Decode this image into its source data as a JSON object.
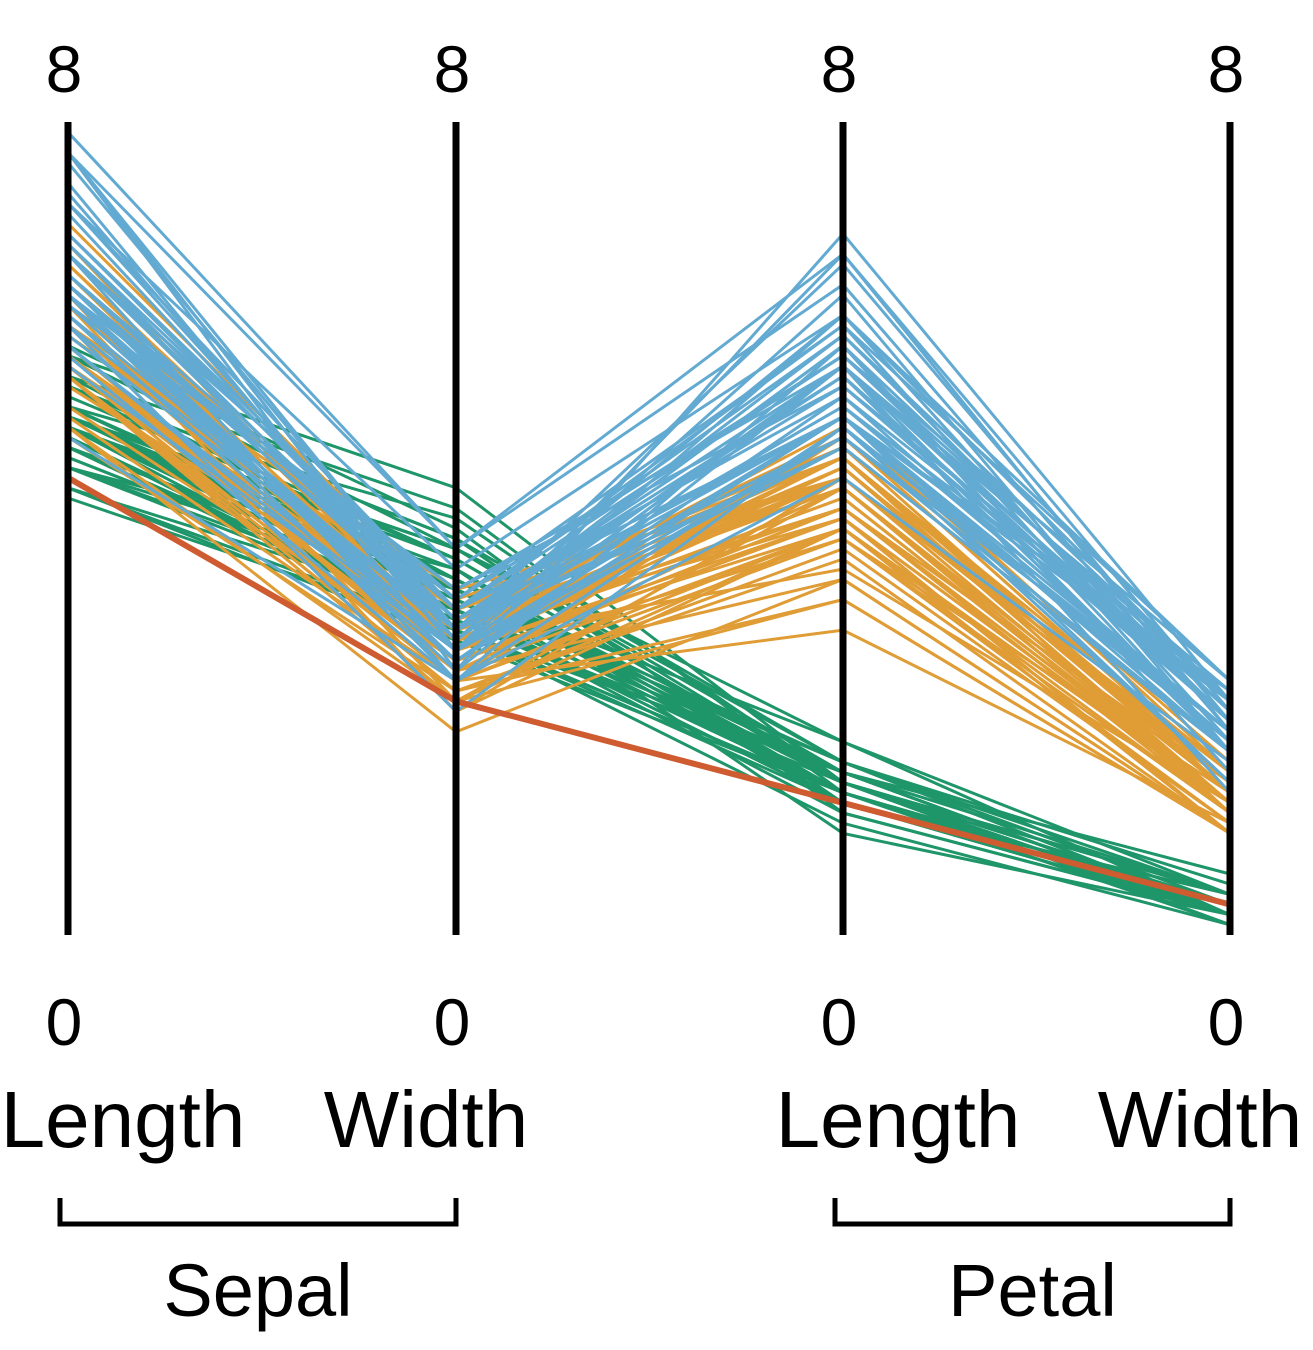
{
  "chart_data": {
    "type": "parallel_coordinates",
    "axes": [
      {
        "label": "Length",
        "min": 0,
        "max": 8,
        "group": "Sepal"
      },
      {
        "label": "Width",
        "min": 0,
        "max": 8,
        "group": "Sepal"
      },
      {
        "label": "Length",
        "min": 0,
        "max": 8,
        "group": "Petal"
      },
      {
        "label": "Width",
        "min": 0,
        "max": 8,
        "group": "Petal"
      }
    ],
    "groups": [
      {
        "label": "Sepal",
        "axes": [
          0,
          1
        ]
      },
      {
        "label": "Petal",
        "axes": [
          2,
          3
        ]
      }
    ],
    "colors": {
      "green": "#1f9669",
      "orange": "#e09c35",
      "blue": "#63aad2",
      "highlight": "#cf5b30"
    },
    "series": [
      {
        "color_key": "green",
        "values": [
          [
            5.1,
            3.5,
            1.4,
            0.2
          ],
          [
            4.9,
            3.0,
            1.4,
            0.2
          ],
          [
            4.7,
            3.2,
            1.3,
            0.2
          ],
          [
            4.6,
            3.1,
            1.5,
            0.2
          ],
          [
            5.0,
            3.6,
            1.4,
            0.2
          ],
          [
            5.4,
            3.9,
            1.7,
            0.4
          ],
          [
            4.6,
            3.4,
            1.4,
            0.3
          ],
          [
            5.0,
            3.4,
            1.5,
            0.2
          ],
          [
            4.4,
            2.9,
            1.4,
            0.2
          ],
          [
            4.9,
            3.1,
            1.5,
            0.1
          ],
          [
            5.4,
            3.7,
            1.5,
            0.2
          ],
          [
            4.8,
            3.4,
            1.6,
            0.2
          ],
          [
            4.8,
            3.0,
            1.4,
            0.1
          ],
          [
            4.3,
            3.0,
            1.1,
            0.1
          ],
          [
            5.8,
            4.0,
            1.2,
            0.2
          ],
          [
            5.7,
            4.4,
            1.5,
            0.4
          ],
          [
            5.4,
            3.9,
            1.3,
            0.4
          ],
          [
            5.1,
            3.5,
            1.4,
            0.3
          ],
          [
            5.7,
            3.8,
            1.7,
            0.3
          ],
          [
            5.1,
            3.8,
            1.5,
            0.3
          ],
          [
            5.4,
            3.4,
            1.7,
            0.2
          ],
          [
            5.1,
            3.7,
            1.5,
            0.4
          ],
          [
            4.6,
            3.6,
            1.0,
            0.2
          ],
          [
            5.1,
            3.3,
            1.7,
            0.5
          ],
          [
            4.8,
            3.4,
            1.9,
            0.2
          ],
          [
            5.0,
            3.0,
            1.6,
            0.2
          ],
          [
            5.0,
            3.4,
            1.6,
            0.4
          ],
          [
            5.2,
            3.5,
            1.5,
            0.2
          ],
          [
            5.2,
            3.4,
            1.4,
            0.2
          ],
          [
            4.7,
            3.2,
            1.6,
            0.2
          ],
          [
            4.8,
            3.1,
            1.6,
            0.2
          ],
          [
            5.4,
            3.4,
            1.5,
            0.4
          ],
          [
            5.2,
            4.1,
            1.5,
            0.1
          ],
          [
            5.5,
            4.2,
            1.4,
            0.2
          ],
          [
            4.9,
            3.1,
            1.5,
            0.2
          ],
          [
            5.0,
            3.2,
            1.2,
            0.2
          ],
          [
            5.5,
            3.5,
            1.3,
            0.2
          ],
          [
            4.4,
            3.0,
            1.3,
            0.2
          ],
          [
            5.1,
            3.4,
            1.5,
            0.2
          ],
          [
            5.0,
            3.5,
            1.3,
            0.3
          ],
          [
            4.5,
            2.3,
            1.3,
            0.3
          ],
          [
            4.4,
            3.2,
            1.3,
            0.2
          ],
          [
            5.0,
            3.5,
            1.6,
            0.6
          ],
          [
            5.1,
            3.8,
            1.9,
            0.4
          ],
          [
            4.8,
            3.0,
            1.4,
            0.3
          ],
          [
            5.1,
            3.8,
            1.6,
            0.2
          ],
          [
            4.6,
            3.2,
            1.4,
            0.2
          ],
          [
            5.3,
            3.7,
            1.5,
            0.2
          ],
          [
            5.0,
            3.3,
            1.4,
            0.2
          ]
        ]
      },
      {
        "color_key": "orange",
        "values": [
          [
            7.0,
            3.2,
            4.7,
            1.4
          ],
          [
            6.4,
            3.2,
            4.5,
            1.5
          ],
          [
            6.9,
            3.1,
            4.9,
            1.5
          ],
          [
            5.5,
            2.3,
            4.0,
            1.3
          ],
          [
            6.5,
            2.8,
            4.6,
            1.5
          ],
          [
            5.7,
            2.8,
            4.5,
            1.3
          ],
          [
            6.3,
            3.3,
            4.7,
            1.6
          ],
          [
            4.9,
            2.4,
            3.3,
            1.0
          ],
          [
            6.6,
            2.9,
            4.6,
            1.3
          ],
          [
            5.2,
            2.7,
            3.9,
            1.4
          ],
          [
            5.0,
            2.0,
            3.5,
            1.0
          ],
          [
            5.9,
            3.0,
            4.2,
            1.5
          ],
          [
            6.0,
            2.2,
            4.0,
            1.0
          ],
          [
            6.1,
            2.9,
            4.7,
            1.4
          ],
          [
            5.6,
            2.9,
            3.6,
            1.3
          ],
          [
            6.7,
            3.1,
            4.4,
            1.4
          ],
          [
            5.6,
            3.0,
            4.5,
            1.5
          ],
          [
            5.8,
            2.7,
            4.1,
            1.0
          ],
          [
            6.2,
            2.2,
            4.5,
            1.5
          ],
          [
            5.6,
            2.5,
            3.9,
            1.1
          ],
          [
            5.9,
            3.2,
            4.8,
            1.8
          ],
          [
            6.1,
            2.8,
            4.0,
            1.3
          ],
          [
            6.3,
            2.5,
            4.9,
            1.5
          ],
          [
            6.1,
            2.8,
            4.7,
            1.2
          ],
          [
            6.4,
            2.9,
            4.3,
            1.3
          ],
          [
            6.6,
            3.0,
            4.4,
            1.4
          ],
          [
            6.8,
            2.8,
            4.8,
            1.4
          ],
          [
            6.7,
            3.0,
            5.0,
            1.7
          ],
          [
            6.0,
            2.9,
            4.5,
            1.5
          ],
          [
            5.7,
            2.6,
            3.5,
            1.0
          ],
          [
            5.5,
            2.4,
            3.8,
            1.1
          ],
          [
            5.5,
            2.4,
            3.7,
            1.0
          ],
          [
            5.8,
            2.7,
            3.9,
            1.2
          ],
          [
            6.0,
            2.7,
            5.1,
            1.6
          ],
          [
            5.4,
            3.0,
            4.5,
            1.5
          ],
          [
            6.0,
            3.4,
            4.5,
            1.6
          ],
          [
            6.7,
            3.1,
            4.7,
            1.5
          ],
          [
            6.3,
            2.3,
            4.4,
            1.3
          ],
          [
            5.6,
            3.0,
            4.1,
            1.3
          ],
          [
            5.5,
            2.5,
            4.0,
            1.3
          ],
          [
            5.5,
            2.6,
            4.4,
            1.2
          ],
          [
            6.1,
            3.0,
            4.6,
            1.4
          ],
          [
            5.8,
            2.6,
            4.0,
            1.2
          ],
          [
            5.0,
            2.3,
            3.3,
            1.0
          ],
          [
            5.6,
            2.7,
            4.2,
            1.3
          ],
          [
            5.7,
            3.0,
            4.2,
            1.2
          ],
          [
            5.7,
            2.9,
            4.2,
            1.3
          ],
          [
            6.2,
            2.9,
            4.3,
            1.3
          ],
          [
            5.1,
            2.5,
            3.0,
            1.1
          ],
          [
            5.7,
            2.8,
            4.1,
            1.3
          ]
        ]
      },
      {
        "color_key": "blue",
        "values": [
          [
            6.3,
            3.3,
            6.0,
            2.5
          ],
          [
            5.8,
            2.7,
            5.1,
            1.9
          ],
          [
            7.1,
            3.0,
            5.9,
            2.1
          ],
          [
            6.3,
            2.9,
            5.6,
            1.8
          ],
          [
            6.5,
            3.0,
            5.8,
            2.2
          ],
          [
            7.6,
            3.0,
            6.6,
            2.1
          ],
          [
            4.9,
            2.5,
            4.5,
            1.7
          ],
          [
            7.3,
            2.9,
            6.3,
            1.8
          ],
          [
            6.7,
            2.5,
            5.8,
            1.8
          ],
          [
            7.2,
            3.6,
            6.1,
            2.5
          ],
          [
            6.5,
            3.2,
            5.1,
            2.0
          ],
          [
            6.4,
            2.7,
            5.3,
            1.9
          ],
          [
            6.8,
            3.0,
            5.5,
            2.1
          ],
          [
            5.7,
            2.5,
            5.0,
            2.0
          ],
          [
            5.8,
            2.8,
            5.1,
            2.4
          ],
          [
            6.4,
            3.2,
            5.3,
            2.3
          ],
          [
            6.5,
            3.0,
            5.5,
            1.8
          ],
          [
            7.7,
            3.8,
            6.7,
            2.2
          ],
          [
            7.7,
            2.6,
            6.9,
            2.3
          ],
          [
            6.0,
            2.2,
            5.0,
            1.5
          ],
          [
            6.9,
            3.2,
            5.7,
            2.3
          ],
          [
            5.6,
            2.8,
            4.9,
            2.0
          ],
          [
            7.7,
            2.8,
            6.7,
            2.0
          ],
          [
            6.3,
            2.7,
            4.9,
            1.8
          ],
          [
            6.7,
            3.3,
            5.7,
            2.1
          ],
          [
            7.2,
            3.2,
            6.0,
            1.8
          ],
          [
            6.2,
            2.8,
            4.8,
            1.8
          ],
          [
            6.1,
            3.0,
            4.9,
            1.8
          ],
          [
            6.4,
            2.8,
            5.6,
            2.1
          ],
          [
            7.2,
            3.0,
            5.8,
            1.6
          ],
          [
            7.4,
            2.8,
            6.1,
            1.9
          ],
          [
            7.9,
            3.8,
            6.4,
            2.0
          ],
          [
            6.4,
            2.8,
            5.6,
            2.2
          ],
          [
            6.3,
            2.8,
            5.1,
            1.5
          ],
          [
            6.1,
            2.6,
            5.6,
            1.4
          ],
          [
            7.7,
            3.0,
            6.1,
            2.3
          ],
          [
            6.3,
            3.4,
            5.6,
            2.4
          ],
          [
            6.4,
            3.1,
            5.5,
            1.8
          ],
          [
            6.0,
            3.0,
            4.8,
            1.8
          ],
          [
            6.9,
            3.1,
            5.4,
            2.1
          ],
          [
            6.7,
            3.1,
            5.6,
            2.4
          ],
          [
            6.9,
            3.1,
            5.1,
            2.3
          ],
          [
            5.8,
            2.7,
            5.1,
            1.9
          ],
          [
            6.8,
            3.2,
            5.9,
            2.3
          ],
          [
            6.7,
            3.3,
            5.7,
            2.5
          ],
          [
            6.7,
            3.0,
            5.2,
            2.3
          ],
          [
            6.3,
            2.5,
            5.0,
            1.9
          ],
          [
            6.5,
            3.0,
            5.2,
            2.0
          ],
          [
            6.2,
            3.4,
            5.4,
            2.3
          ],
          [
            5.9,
            3.0,
            5.1,
            1.8
          ]
        ]
      },
      {
        "color_key": "highlight",
        "values": [
          [
            4.5,
            2.3,
            1.3,
            0.3
          ]
        ]
      }
    ]
  }
}
